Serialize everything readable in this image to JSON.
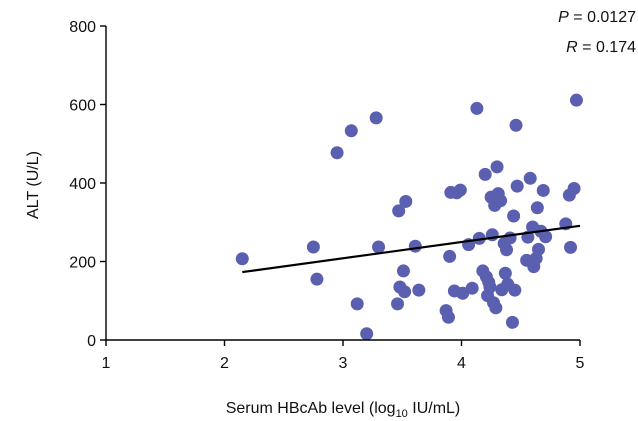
{
  "chart_data": {
    "type": "scatter",
    "title": "",
    "xlabel_prefix": "Serum HBcAb level (log",
    "xlabel_sub": "10",
    "xlabel_suffix": " IU/mL)",
    "ylabel": "ALT (U/L)",
    "xlim": [
      1,
      5
    ],
    "ylim": [
      0,
      800
    ],
    "xticks": [
      "1",
      "2",
      "3",
      "4",
      "5"
    ],
    "yticks": [
      "0",
      "200",
      "400",
      "600",
      "800"
    ],
    "grid": false,
    "legend": "none",
    "annotations": [
      {
        "symbol": "P",
        "text": " = 0.0127"
      },
      {
        "symbol": "R",
        "text": " = 0.174"
      }
    ],
    "colors": {
      "points": "#5B5FAF",
      "trend": "#000000",
      "axis": "#000000"
    },
    "series": [
      {
        "points": [
          [
            2.15,
            207
          ],
          [
            2.75,
            237
          ],
          [
            2.78,
            155
          ],
          [
            2.95,
            477
          ],
          [
            3.07,
            533
          ],
          [
            3.12,
            92
          ],
          [
            3.2,
            16
          ],
          [
            3.28,
            566
          ],
          [
            3.3,
            237
          ],
          [
            3.46,
            92
          ],
          [
            3.47,
            329
          ],
          [
            3.48,
            135
          ],
          [
            3.51,
            176
          ],
          [
            3.52,
            123
          ],
          [
            3.53,
            353
          ],
          [
            3.61,
            239
          ],
          [
            3.64,
            127
          ],
          [
            3.87,
            75
          ],
          [
            3.89,
            58
          ],
          [
            3.9,
            213
          ],
          [
            3.91,
            376
          ],
          [
            3.94,
            125
          ],
          [
            3.96,
            375
          ],
          [
            3.99,
            382
          ],
          [
            4.01,
            119
          ],
          [
            4.06,
            243
          ],
          [
            4.09,
            132
          ],
          [
            4.13,
            590
          ],
          [
            4.15,
            259
          ],
          [
            4.18,
            176
          ],
          [
            4.2,
            422
          ],
          [
            4.21,
            161
          ],
          [
            4.22,
            113
          ],
          [
            4.23,
            147
          ],
          [
            4.24,
            135
          ],
          [
            4.25,
            364
          ],
          [
            4.26,
            268
          ],
          [
            4.27,
            95
          ],
          [
            4.28,
            343
          ],
          [
            4.29,
            82
          ],
          [
            4.3,
            441
          ],
          [
            4.31,
            373
          ],
          [
            4.33,
            355
          ],
          [
            4.34,
            128
          ],
          [
            4.36,
            246
          ],
          [
            4.37,
            170
          ],
          [
            4.38,
            230
          ],
          [
            4.39,
            142
          ],
          [
            4.41,
            260
          ],
          [
            4.43,
            45
          ],
          [
            4.44,
            316
          ],
          [
            4.45,
            127
          ],
          [
            4.46,
            547
          ],
          [
            4.47,
            392
          ],
          [
            4.55,
            203
          ],
          [
            4.56,
            262
          ],
          [
            4.58,
            412
          ],
          [
            4.6,
            288
          ],
          [
            4.61,
            187
          ],
          [
            4.63,
            208
          ],
          [
            4.64,
            337
          ],
          [
            4.65,
            231
          ],
          [
            4.67,
            277
          ],
          [
            4.69,
            381
          ],
          [
            4.71,
            263
          ],
          [
            4.88,
            296
          ],
          [
            4.91,
            369
          ],
          [
            4.92,
            236
          ],
          [
            4.95,
            386
          ],
          [
            4.97,
            611
          ]
        ]
      }
    ],
    "trendline": {
      "x": [
        2.15,
        5.0
      ],
      "y": [
        173,
        291
      ]
    }
  }
}
